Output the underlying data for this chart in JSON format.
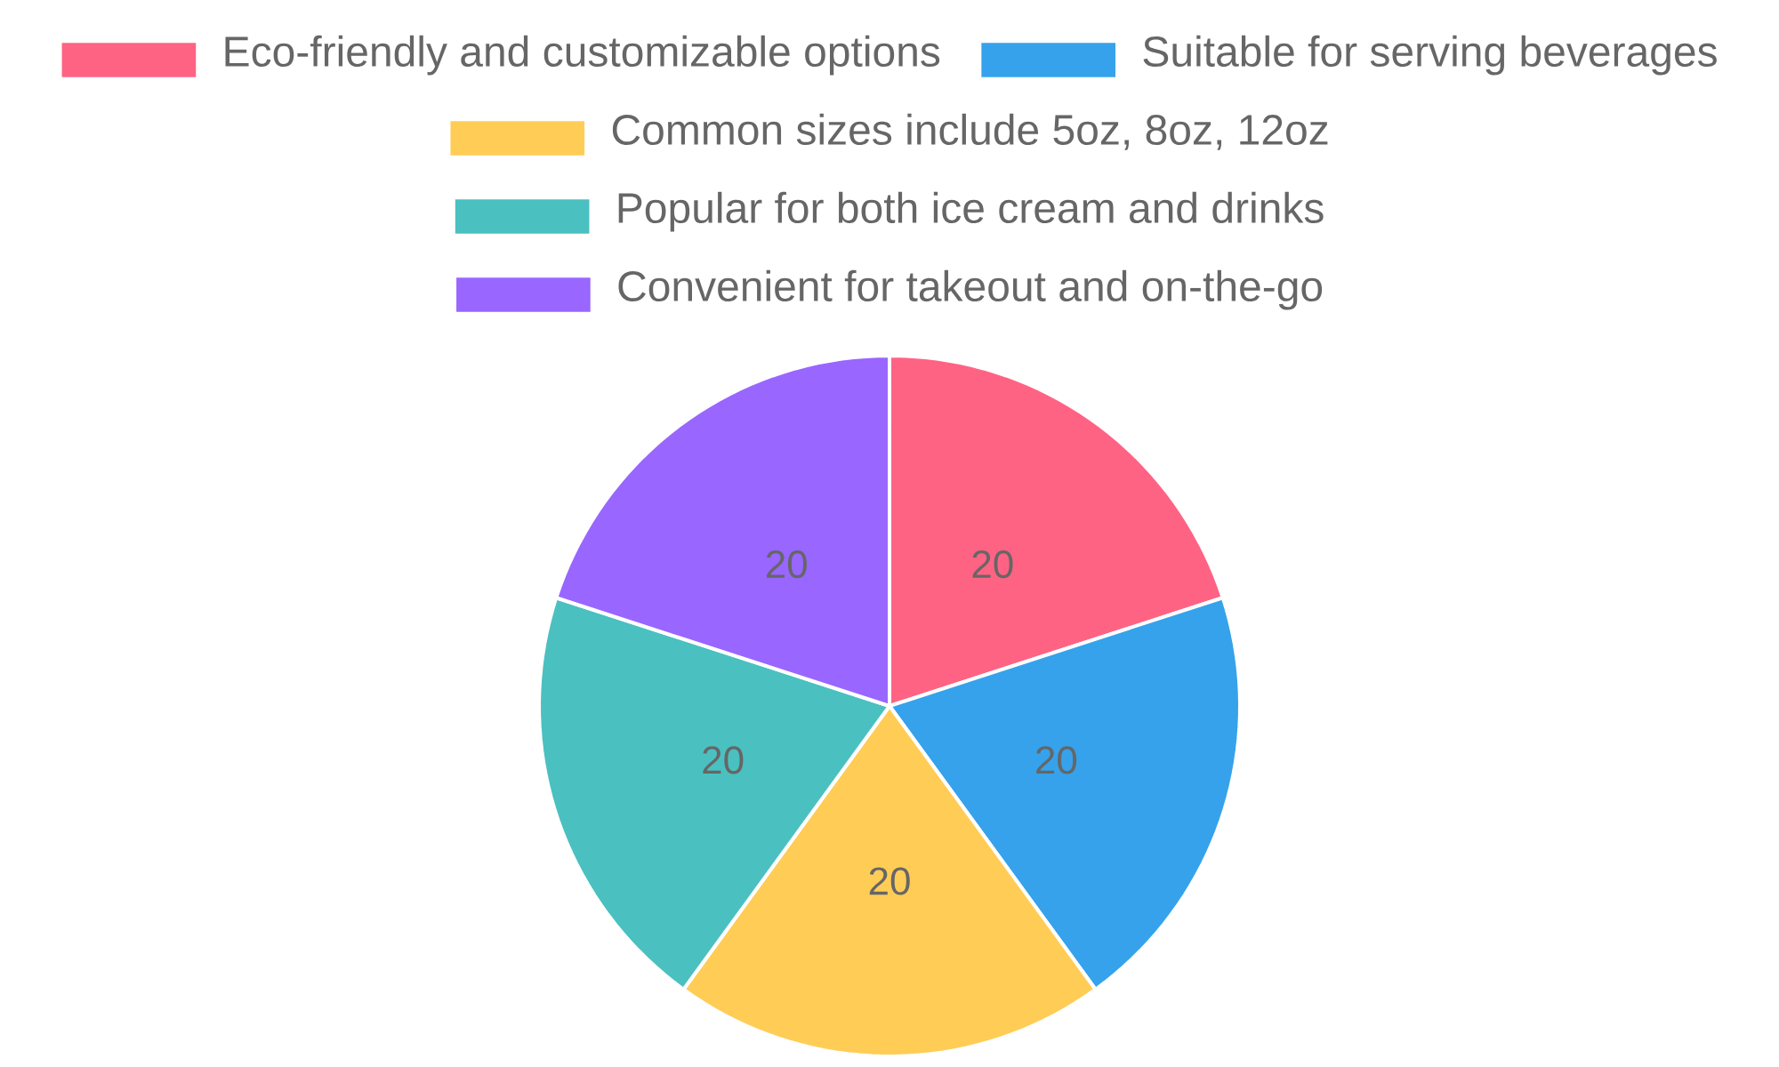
{
  "chart_data": {
    "type": "pie",
    "categories": [
      "Eco-friendly and customizable options",
      "Suitable for serving beverages",
      "Common sizes include 5oz, 8oz, 12oz",
      "Popular for both ice cream and drinks",
      "Convenient for takeout and on-the-go"
    ],
    "values": [
      20,
      20,
      20,
      20,
      20
    ],
    "colors": [
      "#ff6384",
      "#36a2eb",
      "#ffcd56",
      "#4bc0c0",
      "#9966ff"
    ],
    "legend": "top",
    "data_labels": true
  }
}
